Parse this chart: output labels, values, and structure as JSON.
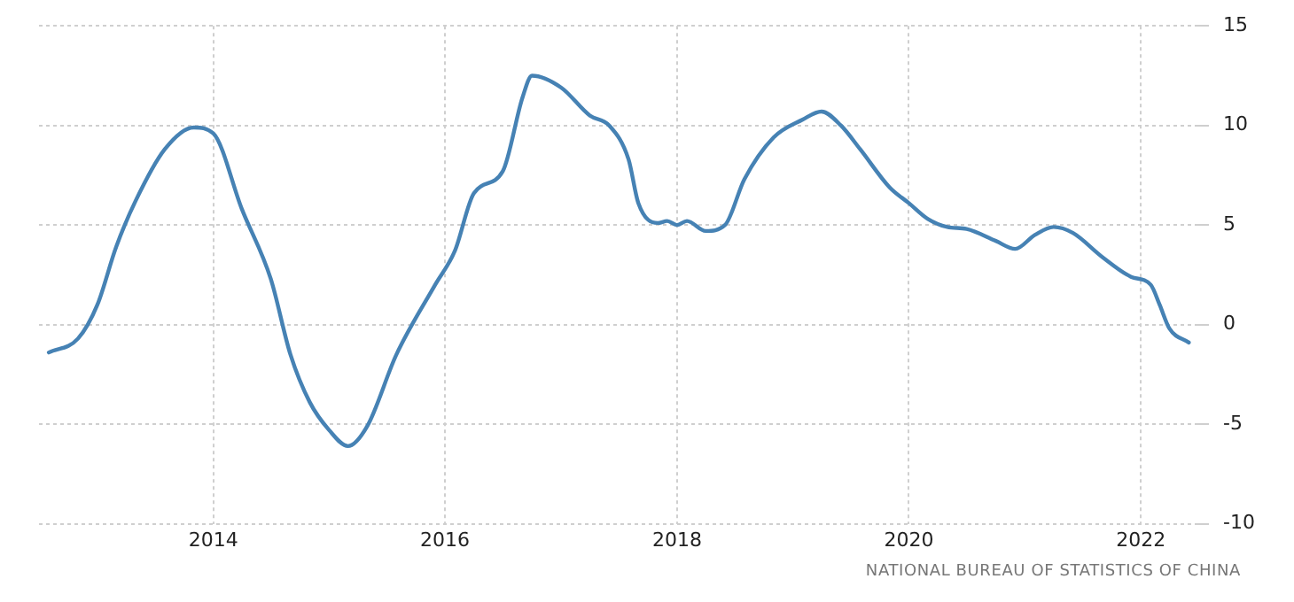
{
  "chart_data": {
    "type": "line",
    "x": [
      "2012-08",
      "2012-11",
      "2013-01",
      "2013-03",
      "2013-05",
      "2013-08",
      "2013-11",
      "2014-01",
      "2014-04",
      "2014-07",
      "2014-09",
      "2014-11",
      "2015-01",
      "2015-03",
      "2015-05",
      "2015-08",
      "2015-12",
      "2016-02",
      "2016-04",
      "2016-07",
      "2016-09",
      "2016-10",
      "2017-01",
      "2017-04",
      "2017-06",
      "2017-08",
      "2017-09",
      "2017-11",
      "2017-12",
      "2018-01",
      "2018-02",
      "2018-04",
      "2018-06",
      "2018-08",
      "2018-11",
      "2019-02",
      "2019-04",
      "2019-06",
      "2019-08",
      "2019-11",
      "2020-01",
      "2020-03",
      "2020-05",
      "2020-07",
      "2020-10",
      "2020-12",
      "2021-02",
      "2021-04",
      "2021-06",
      "2021-09",
      "2021-12",
      "2022-02",
      "2022-03",
      "2022-04",
      "2022-06"
    ],
    "series": [
      {
        "color": "#4682b4",
        "values": [
          -1.4,
          -0.7,
          1.0,
          3.9,
          6.2,
          8.8,
          9.9,
          9.6,
          5.8,
          2.3,
          -1.5,
          -3.9,
          -5.3,
          -6.1,
          -5.1,
          -1.5,
          2.0,
          3.7,
          6.6,
          7.7,
          11.4,
          12.5,
          11.9,
          10.5,
          10.0,
          8.3,
          6.1,
          5.1,
          5.2,
          5.0,
          5.2,
          4.7,
          5.0,
          7.3,
          9.4,
          10.3,
          10.7,
          10.0,
          8.8,
          6.9,
          6.1,
          5.3,
          4.9,
          4.8,
          4.2,
          3.8,
          4.5,
          4.9,
          4.6,
          3.4,
          2.4,
          2.0,
          1.0,
          -0.2,
          -0.9
        ]
      }
    ],
    "xlim": [
      "2012-07",
      "2022-07"
    ],
    "xticks": [
      "2014",
      "2016",
      "2018",
      "2020",
      "2022"
    ],
    "ylim": [
      -10,
      15
    ],
    "yticks": [
      -10,
      -5,
      0,
      5,
      10,
      15
    ],
    "grid": true,
    "legend": false,
    "marker": "none",
    "line_style": "solid",
    "annotations": [
      "NATIONAL BUREAU OF STATISTICS OF CHINA"
    ]
  }
}
